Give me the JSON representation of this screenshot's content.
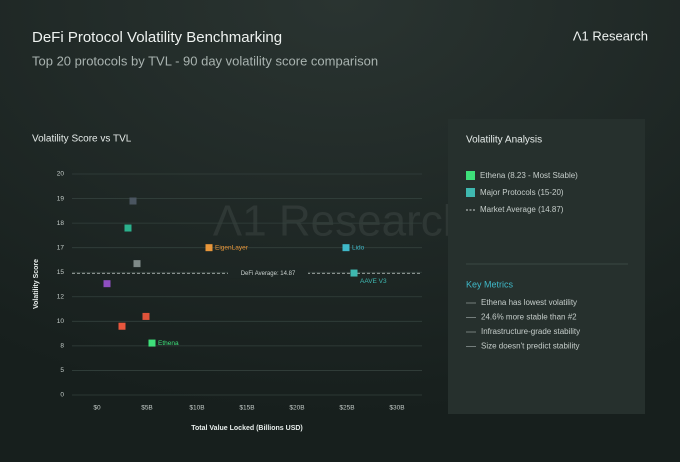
{
  "header": {
    "title": "DeFi Protocol Volatility Benchmarking",
    "subtitle": "Top 20 protocols by TVL - 90 day volatility score comparison",
    "brand": "Λ1 Research"
  },
  "watermark": "Λ1 Research",
  "chart_data": {
    "type": "scatter",
    "title": "Volatility Score vs TVL",
    "x_label": "Total Value Locked (Billions USD)",
    "y_label": "Volatility Score",
    "xlim": [
      -2.5,
      32.5
    ],
    "ylim": [
      0,
      20
    ],
    "xticks": [
      {
        "value": 0,
        "label": "$0"
      },
      {
        "value": 5,
        "label": "$5B"
      },
      {
        "value": 10,
        "label": "$10B"
      },
      {
        "value": 15,
        "label": "$15B"
      },
      {
        "value": 20,
        "label": "$20B"
      },
      {
        "value": 25,
        "label": "$25B"
      },
      {
        "value": 30,
        "label": "$30B"
      }
    ],
    "yticks": [
      0,
      5,
      8,
      10,
      12,
      15,
      17,
      18,
      19,
      20
    ],
    "grid": true,
    "points": [
      {
        "x": 3.6,
        "y": 18.9,
        "color": "#4a5560"
      },
      {
        "x": 3.1,
        "y": 17.8,
        "color": "#2bb08c"
      },
      {
        "x": 4.0,
        "y": 15.7,
        "color": "#7f8a88"
      },
      {
        "x": 1.0,
        "y": 13.6,
        "color": "#8e4fc0"
      },
      {
        "x": 4.9,
        "y": 10.4,
        "color": "#e0533a"
      },
      {
        "x": 2.5,
        "y": 9.6,
        "color": "#e8563d"
      },
      {
        "x": 5.5,
        "y": 8.23,
        "color": "#3ee07a",
        "label": "Ethena"
      },
      {
        "x": 11.2,
        "y": 17.0,
        "color": "#e8963a",
        "label": "EigenLayer"
      },
      {
        "x": 24.9,
        "y": 17.0,
        "color": "#3fb8c8",
        "label": "Lido"
      },
      {
        "x": 25.7,
        "y": 14.9,
        "color": "#3fb8b0",
        "label": "AAVE V3"
      }
    ],
    "average": 14.87,
    "average_label": "DeFi Average: 14.87"
  },
  "panel": {
    "title": "Volatility Analysis",
    "legend": [
      {
        "label": "Ethena (8.23 - Most Stable)",
        "color": "#3ee07a"
      },
      {
        "label": "Major Protocols (15-20)",
        "color": "#3fb8b0"
      },
      {
        "label": "Market Average (14.87)",
        "color": "#c9d1ce"
      }
    ],
    "metrics_title": "Key Metrics",
    "metrics": [
      "Ethena has lowest volatility",
      "24.6% more stable than #2",
      "Infrastructure-grade stability",
      "Size doesn't predict stability"
    ]
  }
}
